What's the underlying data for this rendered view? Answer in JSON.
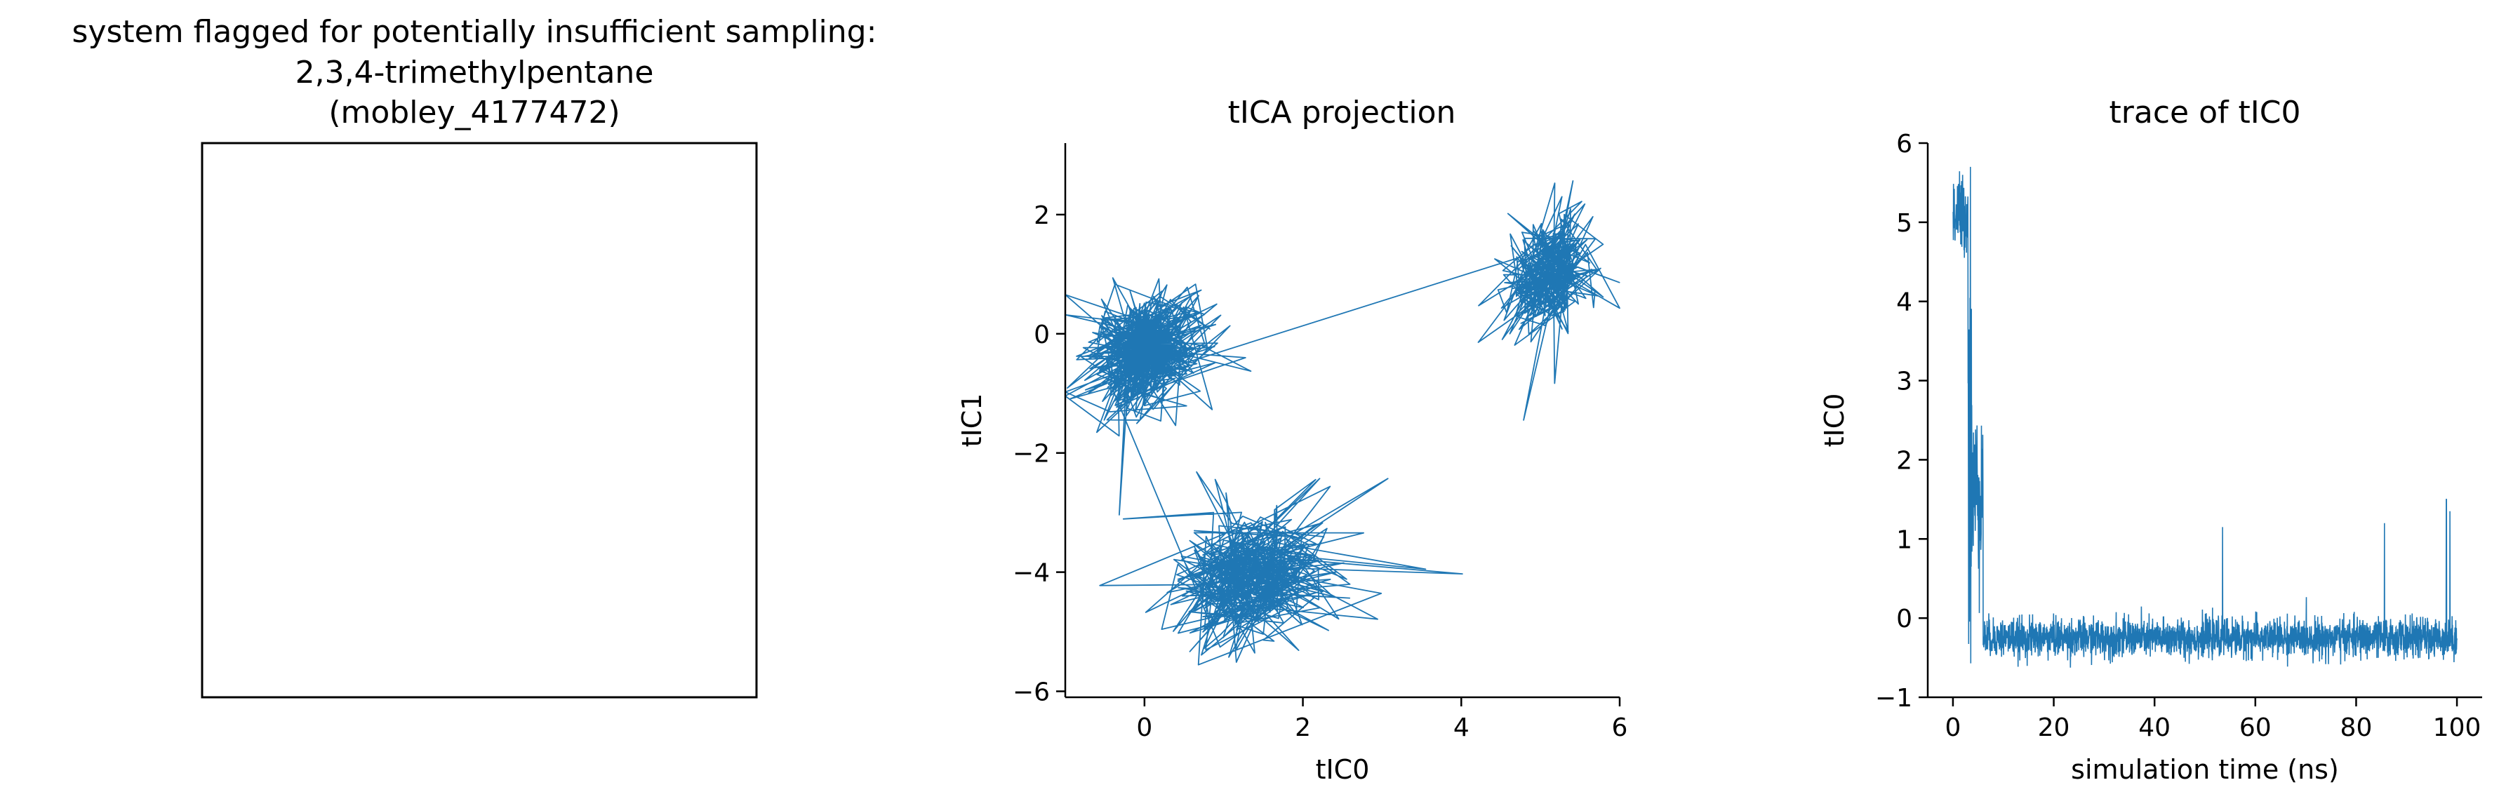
{
  "panel1": {
    "title_lines": [
      "system flagged for potentially insufficient sampling:",
      "2,3,4-trimethylpentane",
      "(mobley_4177472)"
    ]
  },
  "colors": {
    "series": "#1f77b4",
    "axis": "#000000"
  },
  "chart_data": [
    {
      "type": "line",
      "title": "tICA projection",
      "xlabel": "tIC0",
      "ylabel": "tIC1",
      "xlim": [
        -1.0,
        6.0
      ],
      "ylim": [
        -6.1,
        3.2
      ],
      "xticks": [
        0,
        2,
        4,
        6
      ],
      "xtick_labels": [
        "0",
        "2",
        "4",
        "6"
      ],
      "yticks": [
        -6,
        -4,
        -2,
        0,
        2
      ],
      "ytick_labels": [
        "−6",
        "−4",
        "−2",
        "0",
        "2"
      ],
      "grid": false,
      "series": [
        {
          "description": "trajectory projected onto the first two tICs; three metastable clusters",
          "clusters": [
            {
              "center": [
                0.0,
                -0.3
              ],
              "spread": [
                0.35,
                0.45
              ],
              "count": 500
            },
            {
              "center": [
                1.3,
                -4.1
              ],
              "spread": [
                0.45,
                0.5
              ],
              "count": 400
            },
            {
              "center": [
                5.1,
                1.0
              ],
              "spread": [
                0.25,
                0.5
              ],
              "count": 300
            }
          ],
          "path_order": [
            "cluster_2",
            "cluster_0",
            "cluster_1"
          ]
        }
      ]
    },
    {
      "type": "line",
      "title": "trace of tIC0",
      "xlabel": "simulation time (ns)",
      "ylabel": "tIC0",
      "xlim": [
        -5,
        105
      ],
      "ylim": [
        -1,
        6
      ],
      "xticks": [
        0,
        20,
        40,
        60,
        80,
        100
      ],
      "xtick_labels": [
        "0",
        "20",
        "40",
        "60",
        "80",
        "100"
      ],
      "yticks": [
        -1,
        0,
        1,
        2,
        3,
        4,
        5,
        6
      ],
      "ytick_labels": [
        "−1",
        "0",
        "1",
        "2",
        "3",
        "4",
        "5",
        "6"
      ],
      "grid": false,
      "series": [
        {
          "segments": [
            {
              "t": [
                0,
                3
              ],
              "mean": 5.1,
              "noise": 0.25
            },
            {
              "t": [
                3,
                3.8
              ],
              "mean": 2.5,
              "noise": 1.5
            },
            {
              "t": [
                3.8,
                6
              ],
              "mean": 1.6,
              "noise": 0.5
            },
            {
              "t": [
                6,
                100
              ],
              "mean": -0.25,
              "noise": 0.12
            }
          ],
          "spikes": [
            {
              "t": 53.5,
              "v": 1.15
            },
            {
              "t": 85.6,
              "v": 1.2
            },
            {
              "t": 97.9,
              "v": 1.5
            },
            {
              "t": 98.6,
              "v": 1.35
            }
          ]
        }
      ]
    }
  ]
}
